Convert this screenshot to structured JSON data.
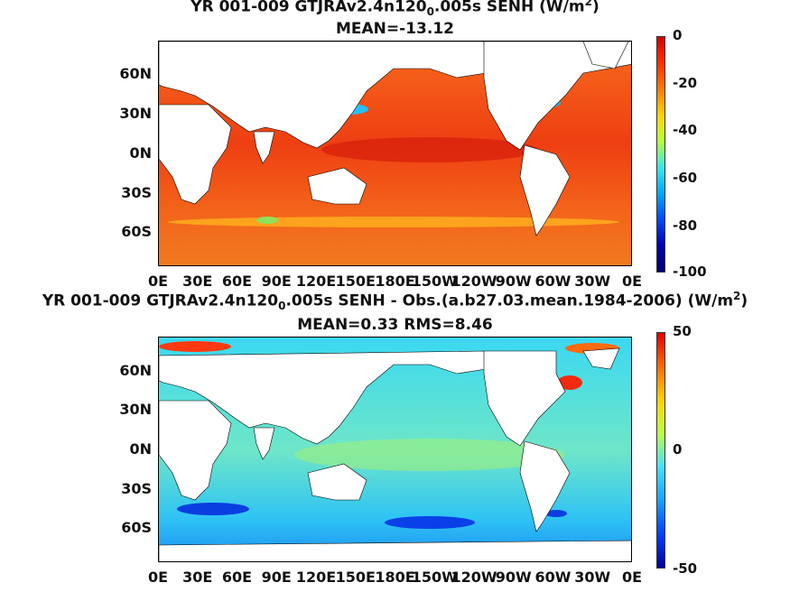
{
  "panels": [
    {
      "title_a": "YR 001-009 GTJRAv2.4n120",
      "title_sub": "0",
      "title_b": ".005s  SENH (W/m",
      "title_sup": "2",
      "title_c": ")",
      "stat": "MEAN=-13.12",
      "colorbar": {
        "labels": [
          "0",
          "-20",
          "-40",
          "-60",
          "-80",
          "-100"
        ],
        "gradient": [
          "#d00000",
          "#ff3000",
          "#ff7a00",
          "#ffd200",
          "#b6ff3c",
          "#3ce6e6",
          "#00a8ff",
          "#0046ff",
          "#0000b0",
          "#000070"
        ]
      },
      "ocean_color": "#f45a1c"
    },
    {
      "title_a": "YR 001-009 GTJRAv2.4n120",
      "title_sub": "0",
      "title_b": ".005s SENH - Obs.(a.b27.03.mean.1984-2006) (W/m",
      "title_sup": "2",
      "title_c": ")",
      "stat": "MEAN=0.33 RMS=8.46",
      "colorbar": {
        "labels": [
          "50",
          "0",
          "-50"
        ],
        "gradient": [
          "#e00000",
          "#ff6a00",
          "#ffd200",
          "#bcff4a",
          "#44e0ff",
          "#1aa0ff",
          "#0040ff",
          "#0000a0"
        ]
      },
      "ocean_color": "#3ad2f0"
    }
  ],
  "axes": {
    "lat_labels": [
      "60N",
      "30N",
      "0N",
      "30S",
      "60S"
    ],
    "lon_labels": [
      "0E",
      "30E",
      "60E",
      "90E",
      "120E",
      "150E",
      "180E",
      "150W",
      "120W",
      "90W",
      "60W",
      "30W",
      "0E"
    ]
  }
}
